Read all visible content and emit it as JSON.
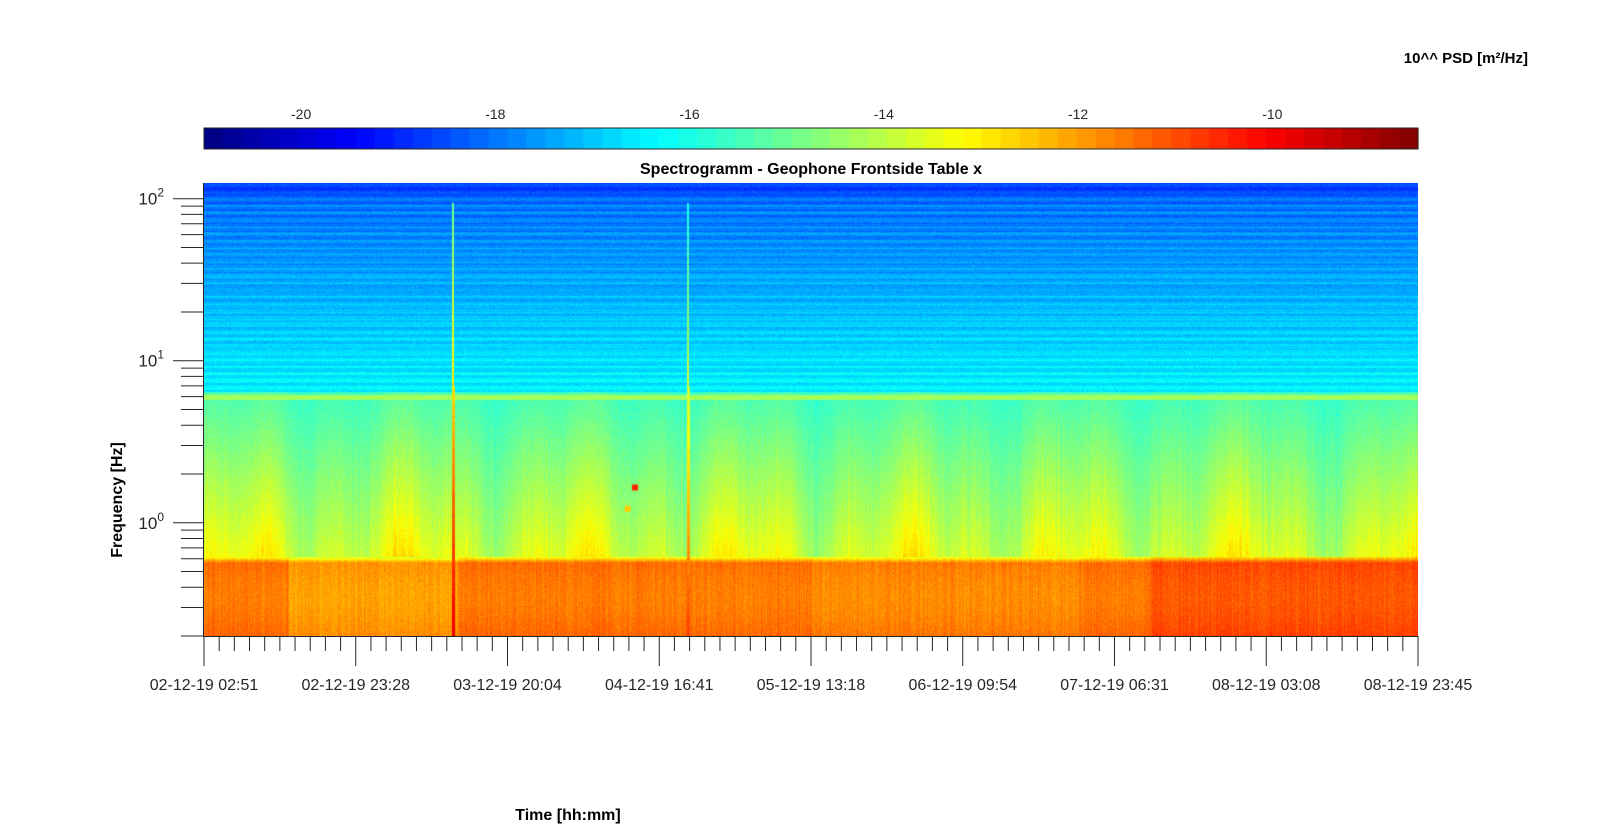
{
  "chart_data": {
    "type": "heatmap",
    "title": "Spectrogramm - Geophone Frontside Table x",
    "xlabel": "Time [hh:mm]",
    "ylabel": "Frequency [Hz]",
    "x_tick_labels": [
      "02-12-19 02:51",
      "02-12-19 23:28",
      "03-12-19 20:04",
      "04-12-19 16:41",
      "05-12-19 13:18",
      "06-12-19 09:54",
      "07-12-19 06:31",
      "08-12-19 03:08",
      "08-12-19 23:45"
    ],
    "y_scale": "log",
    "y_range_hz": [
      0.2,
      125
    ],
    "y_tick_labels": [
      {
        "base": "10",
        "exp": "0",
        "value": 1
      },
      {
        "base": "10",
        "exp": "1",
        "value": 10
      },
      {
        "base": "10",
        "exp": "2",
        "value": 100
      }
    ],
    "colorbar": {
      "label": "10^^ PSD [m²/Hz]",
      "range": [
        -21,
        -8.5
      ],
      "ticks": [
        -20,
        -18,
        -16,
        -14,
        -12,
        -10
      ],
      "tick_labels": [
        "-20",
        "-18",
        "-16",
        "-14",
        "-12",
        "-10"
      ],
      "colormap": "jet",
      "placement": "top"
    },
    "grid": false,
    "features": {
      "low_freq_band": {
        "freq_hz": [
          0.2,
          0.62
        ],
        "level": -11.3
      },
      "mid_band": {
        "freq_hz": [
          0.62,
          6.5
        ],
        "level": -15.0
      },
      "persistent_line": {
        "freq_hz": 6.0,
        "level": -14.3
      },
      "high_band": {
        "freq_hz": [
          6.5,
          125
        ],
        "level": -17.3
      },
      "transient_events": [
        {
          "time_fraction": 0.205,
          "level": -9.8
        },
        {
          "time_fraction": 0.399,
          "level": -10.8
        }
      ],
      "spot_events": [
        {
          "time_fraction": 0.355,
          "freq_hz": 1.65,
          "level": -10.5
        },
        {
          "time_fraction": 0.349,
          "freq_hz": 1.22,
          "level": -12.6
        }
      ]
    }
  }
}
